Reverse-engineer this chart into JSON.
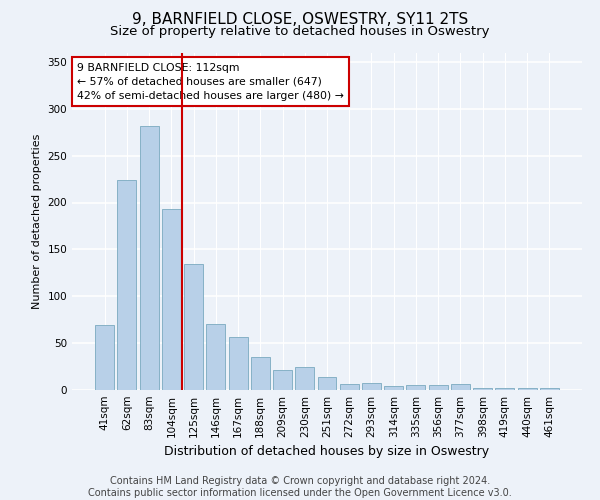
{
  "title": "9, BARNFIELD CLOSE, OSWESTRY, SY11 2TS",
  "subtitle": "Size of property relative to detached houses in Oswestry",
  "xlabel": "Distribution of detached houses by size in Oswestry",
  "ylabel": "Number of detached properties",
  "categories": [
    "41sqm",
    "62sqm",
    "83sqm",
    "104sqm",
    "125sqm",
    "146sqm",
    "167sqm",
    "188sqm",
    "209sqm",
    "230sqm",
    "251sqm",
    "272sqm",
    "293sqm",
    "314sqm",
    "335sqm",
    "356sqm",
    "377sqm",
    "398sqm",
    "419sqm",
    "440sqm",
    "461sqm"
  ],
  "values": [
    69,
    224,
    282,
    193,
    134,
    70,
    57,
    35,
    21,
    25,
    14,
    6,
    8,
    4,
    5,
    5,
    6,
    2,
    2,
    2,
    2
  ],
  "bar_color": "#b8d0e8",
  "bar_edge_color": "#7aaabf",
  "highlight_line_color": "#cc0000",
  "annotation_text": "9 BARNFIELD CLOSE: 112sqm\n← 57% of detached houses are smaller (647)\n42% of semi-detached houses are larger (480) →",
  "annotation_box_color": "#ffffff",
  "annotation_box_edge_color": "#cc0000",
  "ylim": [
    0,
    360
  ],
  "yticks": [
    0,
    50,
    100,
    150,
    200,
    250,
    300,
    350
  ],
  "footer_text": "Contains HM Land Registry data © Crown copyright and database right 2024.\nContains public sector information licensed under the Open Government Licence v3.0.",
  "background_color": "#edf2f9",
  "plot_background_color": "#edf2f9",
  "grid_color": "#ffffff",
  "title_fontsize": 11,
  "subtitle_fontsize": 9.5,
  "xlabel_fontsize": 9,
  "ylabel_fontsize": 8,
  "footer_fontsize": 7,
  "tick_fontsize": 7.5
}
